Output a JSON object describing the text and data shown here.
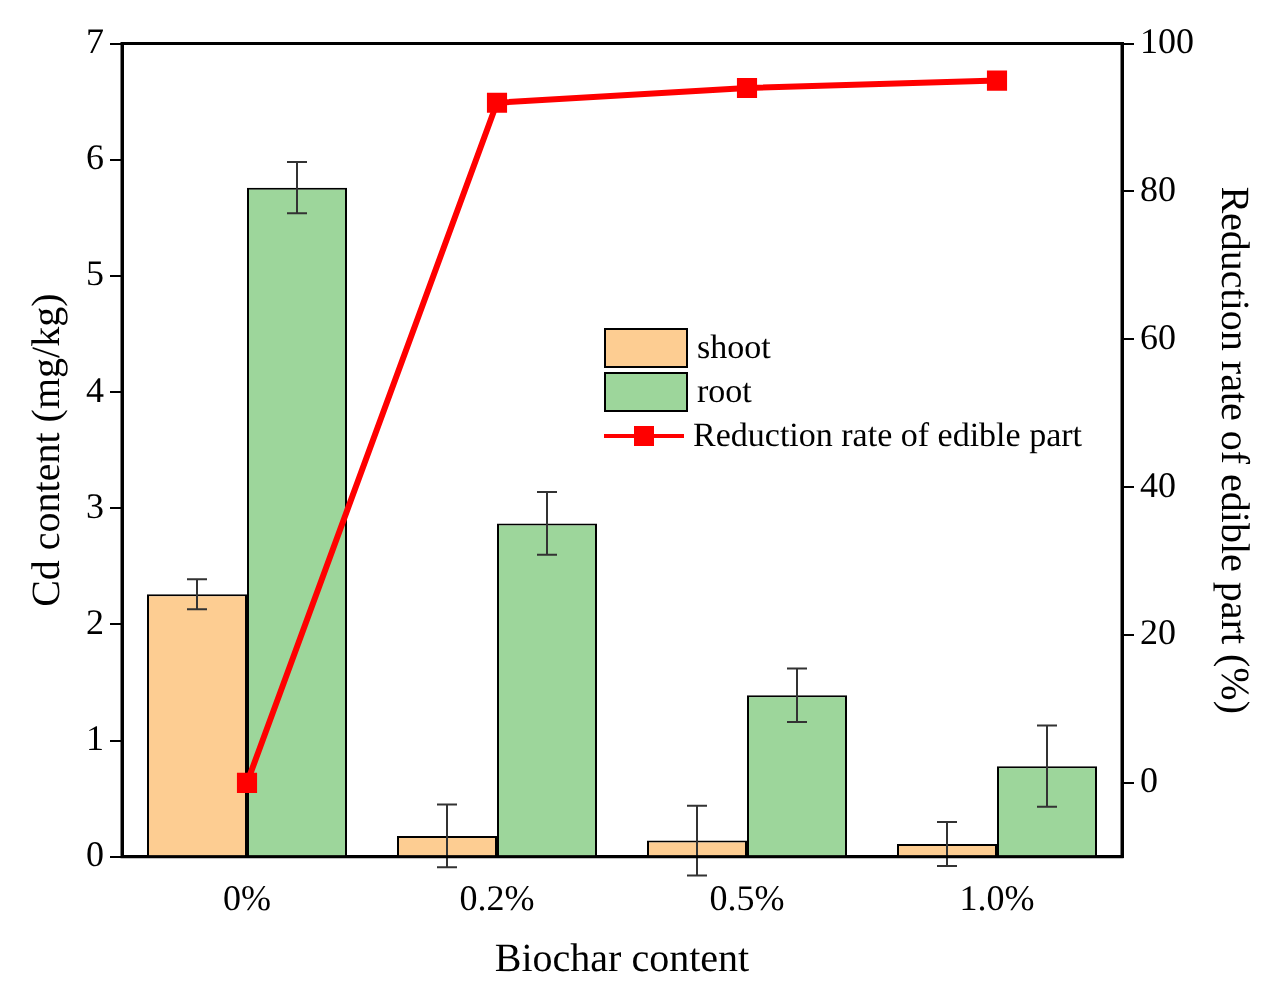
{
  "chart_data": {
    "type": "bar",
    "xlabel": "Biochar content",
    "ylabel": "Cd content (mg/kg)",
    "y2label": "Reduction rate of edible part (%)",
    "categories": [
      "0%",
      "0.2%",
      "0.5%",
      "1.0%"
    ],
    "series": [
      {
        "name": "shoot",
        "color": "#fdcd92",
        "values": [
          2.26,
          0.18,
          0.14,
          0.11
        ],
        "errors": [
          0.13,
          0.27,
          0.3,
          0.19
        ]
      },
      {
        "name": "root",
        "color": "#9dd69b",
        "values": [
          5.76,
          2.87,
          1.39,
          0.78
        ],
        "errors": [
          0.22,
          0.27,
          0.23,
          0.35
        ]
      },
      {
        "name": "Reduction rate of edible part",
        "type": "line",
        "axis": "y2",
        "color": "#ff0000",
        "values": [
          0,
          92,
          94,
          95
        ]
      }
    ],
    "ylim": [
      0,
      7
    ],
    "yticks": [
      0,
      1,
      2,
      3,
      4,
      5,
      6,
      7
    ],
    "y2lim": [
      -10,
      100
    ],
    "y2ticks": [
      0,
      20,
      40,
      60,
      80,
      100
    ],
    "legend": "right",
    "marker": "square",
    "line_style": "solid",
    "grid": false
  }
}
